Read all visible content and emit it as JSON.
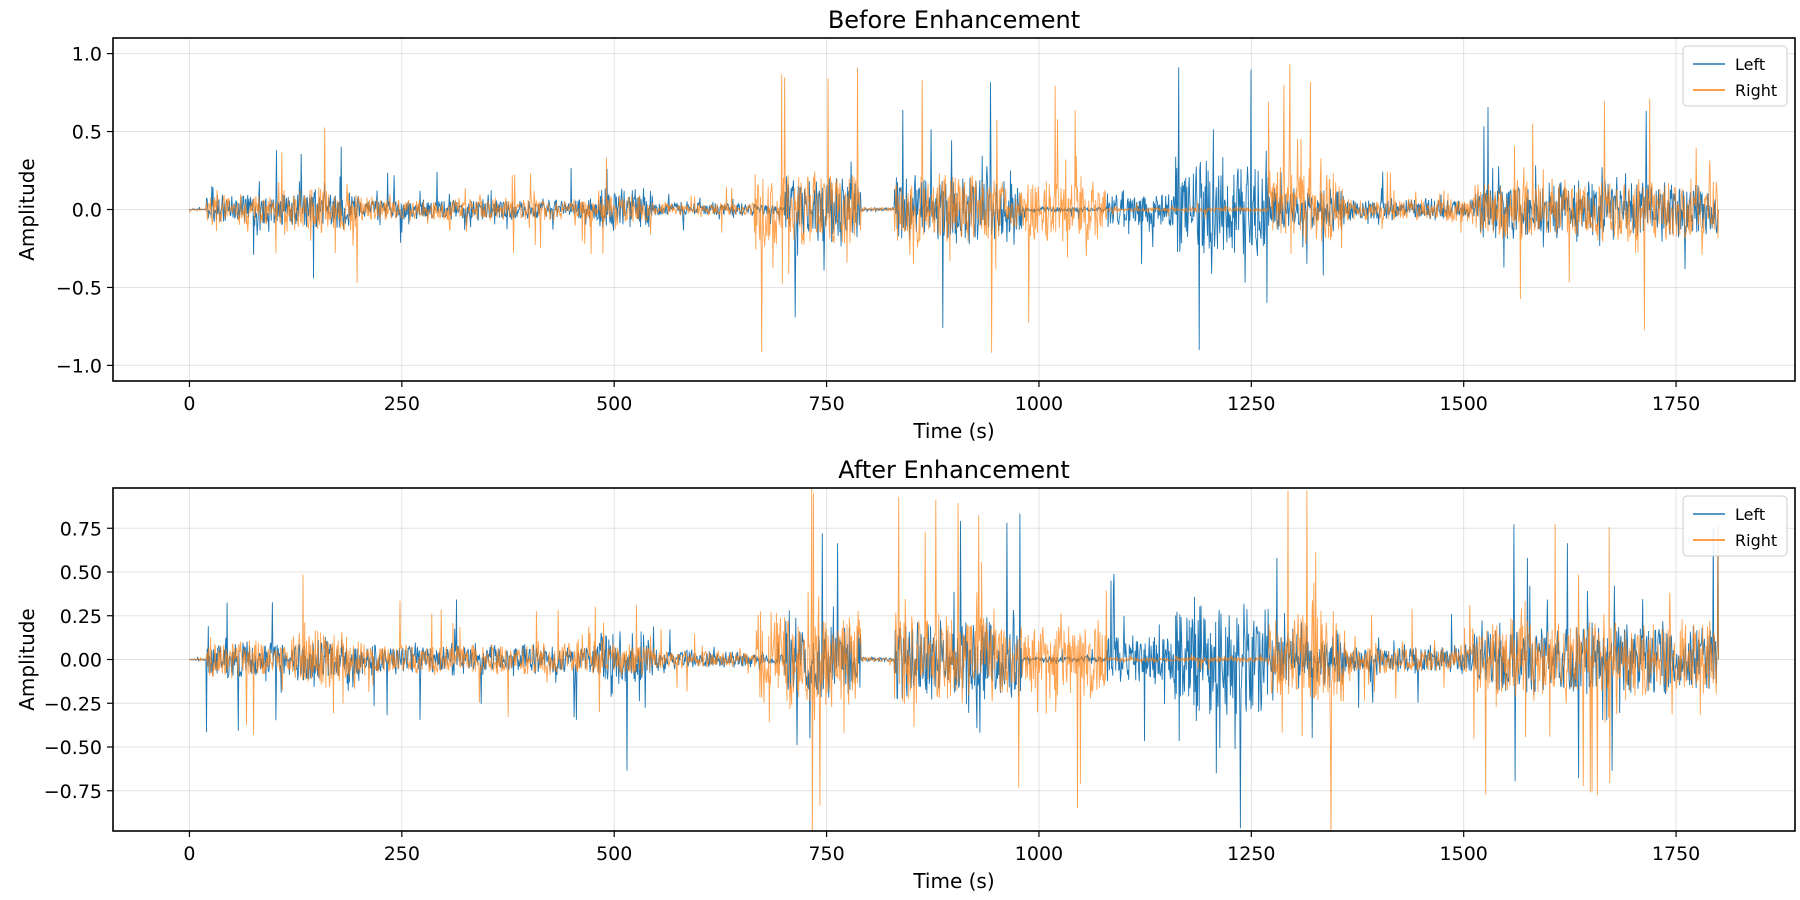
{
  "chart_data": [
    {
      "type": "line",
      "title": "Before Enhancement",
      "xlabel": "Time (s)",
      "ylabel": "Amplitude",
      "xlim": [
        -90,
        1890
      ],
      "ylim": [
        -1.1,
        1.1
      ],
      "xticks": [
        0,
        250,
        500,
        750,
        1000,
        1250,
        1500,
        1750
      ],
      "xtick_labels": [
        "0",
        "250",
        "500",
        "750",
        "1000",
        "1250",
        "1500",
        "1750"
      ],
      "yticks": [
        1.0,
        0.5,
        0.0,
        -0.5,
        -1.0
      ],
      "ytick_labels": [
        "1.0",
        "0.5",
        "0.0",
        "−0.5",
        "−1.0"
      ],
      "grid": true,
      "legend_position": "top-right",
      "series": [
        {
          "name": "Left",
          "color": "#1f77b4",
          "segments": [
            {
              "x": [
                0,
                20
              ],
              "amp": 0.01
            },
            {
              "x": [
                20,
                120
              ],
              "amp": 0.24
            },
            {
              "x": [
                120,
                200
              ],
              "amp": 0.3
            },
            {
              "x": [
                200,
                480
              ],
              "amp": 0.17
            },
            {
              "x": [
                480,
                545
              ],
              "amp": 0.32
            },
            {
              "x": [
                545,
                600
              ],
              "amp": 0.12
            },
            {
              "x": [
                600,
                665
              ],
              "amp": 0.1
            },
            {
              "x": [
                665,
                700
              ],
              "amp": 0.08
            },
            {
              "x": [
                700,
                790
              ],
              "amp": 0.5
            },
            {
              "x": [
                790,
                830
              ],
              "amp": 0.03
            },
            {
              "x": [
                830,
                950
              ],
              "amp": 0.55
            },
            {
              "x": [
                950,
                980
              ],
              "amp": 0.5
            },
            {
              "x": [
                980,
                1080
              ],
              "amp": 0.04
            },
            {
              "x": [
                1080,
                1160
              ],
              "amp": 0.3
            },
            {
              "x": [
                1160,
                1270
              ],
              "amp": 0.78
            },
            {
              "x": [
                1270,
                1360
              ],
              "amp": 0.35
            },
            {
              "x": [
                1360,
                1510
              ],
              "amp": 0.18
            },
            {
              "x": [
                1510,
                1800
              ],
              "amp": 0.44
            }
          ]
        },
        {
          "name": "Right",
          "color": "#ff7f0e",
          "segments": [
            {
              "x": [
                0,
                20
              ],
              "amp": 0.01
            },
            {
              "x": [
                20,
                120
              ],
              "amp": 0.25
            },
            {
              "x": [
                120,
                200
              ],
              "amp": 0.38
            },
            {
              "x": [
                200,
                480
              ],
              "amp": 0.18
            },
            {
              "x": [
                480,
                545
              ],
              "amp": 0.22
            },
            {
              "x": [
                545,
                600
              ],
              "amp": 0.1
            },
            {
              "x": [
                600,
                665
              ],
              "amp": 0.1
            },
            {
              "x": [
                665,
                700
              ],
              "amp": 0.65
            },
            {
              "x": [
                700,
                790
              ],
              "amp": 0.62
            },
            {
              "x": [
                790,
                830
              ],
              "amp": 0.03
            },
            {
              "x": [
                830,
                950
              ],
              "amp": 0.58
            },
            {
              "x": [
                950,
                980
              ],
              "amp": 0.45
            },
            {
              "x": [
                980,
                1080
              ],
              "amp": 0.5
            },
            {
              "x": [
                1080,
                1160
              ],
              "amp": 0.03
            },
            {
              "x": [
                1160,
                1270
              ],
              "amp": 0.04
            },
            {
              "x": [
                1270,
                1360
              ],
              "amp": 0.62
            },
            {
              "x": [
                1360,
                1510
              ],
              "amp": 0.18
            },
            {
              "x": [
                1510,
                1800
              ],
              "amp": 0.5
            }
          ]
        }
      ]
    },
    {
      "type": "line",
      "title": "After Enhancement",
      "xlabel": "Time (s)",
      "ylabel": "Amplitude",
      "xlim": [
        -90,
        1890
      ],
      "ylim": [
        -0.98,
        0.98
      ],
      "xticks": [
        0,
        250,
        500,
        750,
        1000,
        1250,
        1500,
        1750
      ],
      "xtick_labels": [
        "0",
        "250",
        "500",
        "750",
        "1000",
        "1250",
        "1500",
        "1750"
      ],
      "yticks": [
        0.75,
        0.5,
        0.25,
        0.0,
        -0.25,
        -0.5,
        -0.75
      ],
      "ytick_labels": [
        "0.75",
        "0.50",
        "0.25",
        "0.00",
        "−0.25",
        "−0.50",
        "−0.75"
      ],
      "grid": true,
      "legend_position": "top-right",
      "series": [
        {
          "name": "Left",
          "color": "#1f77b4",
          "segments": [
            {
              "x": [
                0,
                20
              ],
              "amp": 0.01
            },
            {
              "x": [
                20,
                120
              ],
              "amp": 0.26
            },
            {
              "x": [
                120,
                200
              ],
              "amp": 0.32
            },
            {
              "x": [
                200,
                480
              ],
              "amp": 0.22
            },
            {
              "x": [
                480,
                545
              ],
              "amp": 0.4
            },
            {
              "x": [
                545,
                600
              ],
              "amp": 0.14
            },
            {
              "x": [
                600,
                665
              ],
              "amp": 0.12
            },
            {
              "x": [
                665,
                700
              ],
              "amp": 0.08
            },
            {
              "x": [
                700,
                790
              ],
              "amp": 0.55
            },
            {
              "x": [
                790,
                830
              ],
              "amp": 0.03
            },
            {
              "x": [
                830,
                950
              ],
              "amp": 0.6
            },
            {
              "x": [
                950,
                980
              ],
              "amp": 0.55
            },
            {
              "x": [
                980,
                1080
              ],
              "amp": 0.04
            },
            {
              "x": [
                1080,
                1160
              ],
              "amp": 0.35
            },
            {
              "x": [
                1160,
                1270
              ],
              "amp": 0.82
            },
            {
              "x": [
                1270,
                1360
              ],
              "amp": 0.4
            },
            {
              "x": [
                1360,
                1510
              ],
              "amp": 0.2
            },
            {
              "x": [
                1510,
                1800
              ],
              "amp": 0.5
            }
          ]
        },
        {
          "name": "Right",
          "color": "#ff7f0e",
          "segments": [
            {
              "x": [
                0,
                20
              ],
              "amp": 0.01
            },
            {
              "x": [
                20,
                120
              ],
              "amp": 0.27
            },
            {
              "x": [
                120,
                200
              ],
              "amp": 0.4
            },
            {
              "x": [
                200,
                480
              ],
              "amp": 0.22
            },
            {
              "x": [
                480,
                545
              ],
              "amp": 0.26
            },
            {
              "x": [
                545,
                600
              ],
              "amp": 0.12
            },
            {
              "x": [
                600,
                665
              ],
              "amp": 0.12
            },
            {
              "x": [
                665,
                700
              ],
              "amp": 0.7
            },
            {
              "x": [
                700,
                790
              ],
              "amp": 0.68
            },
            {
              "x": [
                790,
                830
              ],
              "amp": 0.03
            },
            {
              "x": [
                830,
                950
              ],
              "amp": 0.64
            },
            {
              "x": [
                950,
                980
              ],
              "amp": 0.5
            },
            {
              "x": [
                980,
                1080
              ],
              "amp": 0.55
            },
            {
              "x": [
                1080,
                1160
              ],
              "amp": 0.03
            },
            {
              "x": [
                1160,
                1270
              ],
              "amp": 0.04
            },
            {
              "x": [
                1270,
                1360
              ],
              "amp": 0.66
            },
            {
              "x": [
                1360,
                1510
              ],
              "amp": 0.2
            },
            {
              "x": [
                1510,
                1800
              ],
              "amp": 0.55
            }
          ]
        }
      ]
    }
  ]
}
